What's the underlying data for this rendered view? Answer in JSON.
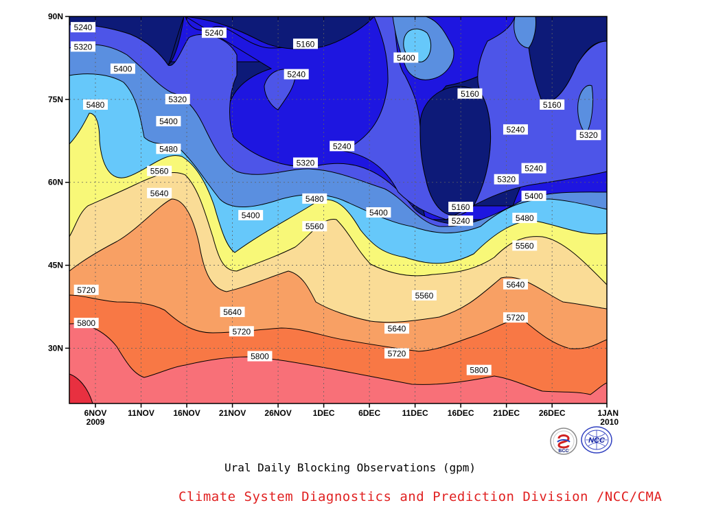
{
  "chart_data": {
    "type": "contour",
    "xlabel": "Ural Daily Blocking Observations (gpm)",
    "credit": "Climate System Diagnostics and Prediction Division /NCC/CMA",
    "x_ticks": [
      {
        "label": "6NOV",
        "sub": "2009"
      },
      {
        "label": "11NOV",
        "sub": ""
      },
      {
        "label": "16NOV",
        "sub": ""
      },
      {
        "label": "21NOV",
        "sub": ""
      },
      {
        "label": "26NOV",
        "sub": ""
      },
      {
        "label": "1DEC",
        "sub": ""
      },
      {
        "label": "6DEC",
        "sub": ""
      },
      {
        "label": "11DEC",
        "sub": ""
      },
      {
        "label": "16DEC",
        "sub": ""
      },
      {
        "label": "21DEC",
        "sub": ""
      },
      {
        "label": "26DEC",
        "sub": ""
      },
      {
        "label": "1JAN",
        "sub": "2010"
      }
    ],
    "y_ticks": [
      "30N",
      "45N",
      "60N",
      "75N",
      "90N"
    ],
    "ylim": [
      20,
      90
    ],
    "grid": true,
    "levels": [
      5160,
      5240,
      5320,
      5400,
      5480,
      5560,
      5640,
      5720,
      5800
    ],
    "level_colors": {
      "below_5160": "#0d1a78",
      "5160_5240": "#1e16e0",
      "5240_5320": "#4d55e8",
      "5320_5400": "#5a8fe0",
      "5400_5480": "#66c8fa",
      "5480_5560": "#f8f878",
      "5560_5640": "#fadc96",
      "5640_5720": "#f8a064",
      "5720_5800": "#f87845",
      "5800_5880": "#f87078",
      "above_5880": "#e83040"
    },
    "contour_labels": [
      {
        "value": "5240",
        "date": "4NOV",
        "lat": 88
      },
      {
        "value": "5320",
        "date": "4NOV",
        "lat": 84.5
      },
      {
        "value": "5400",
        "date": "9NOV",
        "lat": 80.5
      },
      {
        "value": "5480",
        "date": "6NOV",
        "lat": 74
      },
      {
        "value": "5240",
        "date": "19NOV",
        "lat": 87
      },
      {
        "value": "5160",
        "date": "29NOV",
        "lat": 85
      },
      {
        "value": "5240",
        "date": "28NOV",
        "lat": 79.5
      },
      {
        "value": "5320",
        "date": "15NOV",
        "lat": 75
      },
      {
        "value": "5400",
        "date": "14NOV",
        "lat": 71
      },
      {
        "value": "5480",
        "date": "14NOV",
        "lat": 66
      },
      {
        "value": "5560",
        "date": "13NOV",
        "lat": 62
      },
      {
        "value": "5640",
        "date": "13NOV",
        "lat": 58
      },
      {
        "value": "5400",
        "date": "23NOV",
        "lat": 54
      },
      {
        "value": "5320",
        "date": "29NOV",
        "lat": 63.5
      },
      {
        "value": "5240",
        "date": "3DEC",
        "lat": 66.5
      },
      {
        "value": "5480",
        "date": "30NOV",
        "lat": 57
      },
      {
        "value": "5560",
        "date": "30NOV",
        "lat": 52
      },
      {
        "value": "5400",
        "date": "7DEC",
        "lat": 54.5
      },
      {
        "value": "5400",
        "date": "10DEC",
        "lat": 82.5
      },
      {
        "value": "5160",
        "date": "17DEC",
        "lat": 76
      },
      {
        "value": "5160",
        "date": "16DEC",
        "lat": 55.5
      },
      {
        "value": "5240",
        "date": "16DEC",
        "lat": 53
      },
      {
        "value": "5240",
        "date": "22DEC",
        "lat": 69.5
      },
      {
        "value": "5160",
        "date": "26DEC",
        "lat": 74
      },
      {
        "value": "5240",
        "date": "24DEC",
        "lat": 62.5
      },
      {
        "value": "5320",
        "date": "21DEC",
        "lat": 60.5
      },
      {
        "value": "5400",
        "date": "24DEC",
        "lat": 57.5
      },
      {
        "value": "5480",
        "date": "23DEC",
        "lat": 53.5
      },
      {
        "value": "5560",
        "date": "23DEC",
        "lat": 48.5
      },
      {
        "value": "5320",
        "date": "30DEC",
        "lat": 68.5
      },
      {
        "value": "5720",
        "date": "5NOV",
        "lat": 40.5
      },
      {
        "value": "5800",
        "date": "5NOV",
        "lat": 34.5
      },
      {
        "value": "5640",
        "date": "21NOV",
        "lat": 36.5
      },
      {
        "value": "5720",
        "date": "22NOV",
        "lat": 33
      },
      {
        "value": "5800",
        "date": "24NOV",
        "lat": 28.5
      },
      {
        "value": "5560",
        "date": "12DEC",
        "lat": 39.5
      },
      {
        "value": "5640",
        "date": "9DEC",
        "lat": 33.5
      },
      {
        "value": "5720",
        "date": "9DEC",
        "lat": 29
      },
      {
        "value": "5800",
        "date": "18DEC",
        "lat": 26
      },
      {
        "value": "5640",
        "date": "22DEC",
        "lat": 41.5
      },
      {
        "value": "5720",
        "date": "22DEC",
        "lat": 35.5
      }
    ]
  },
  "logos": [
    {
      "name": "bcc-logo",
      "text": "BCC"
    },
    {
      "name": "ncc-logo",
      "text": "NCC"
    }
  ]
}
